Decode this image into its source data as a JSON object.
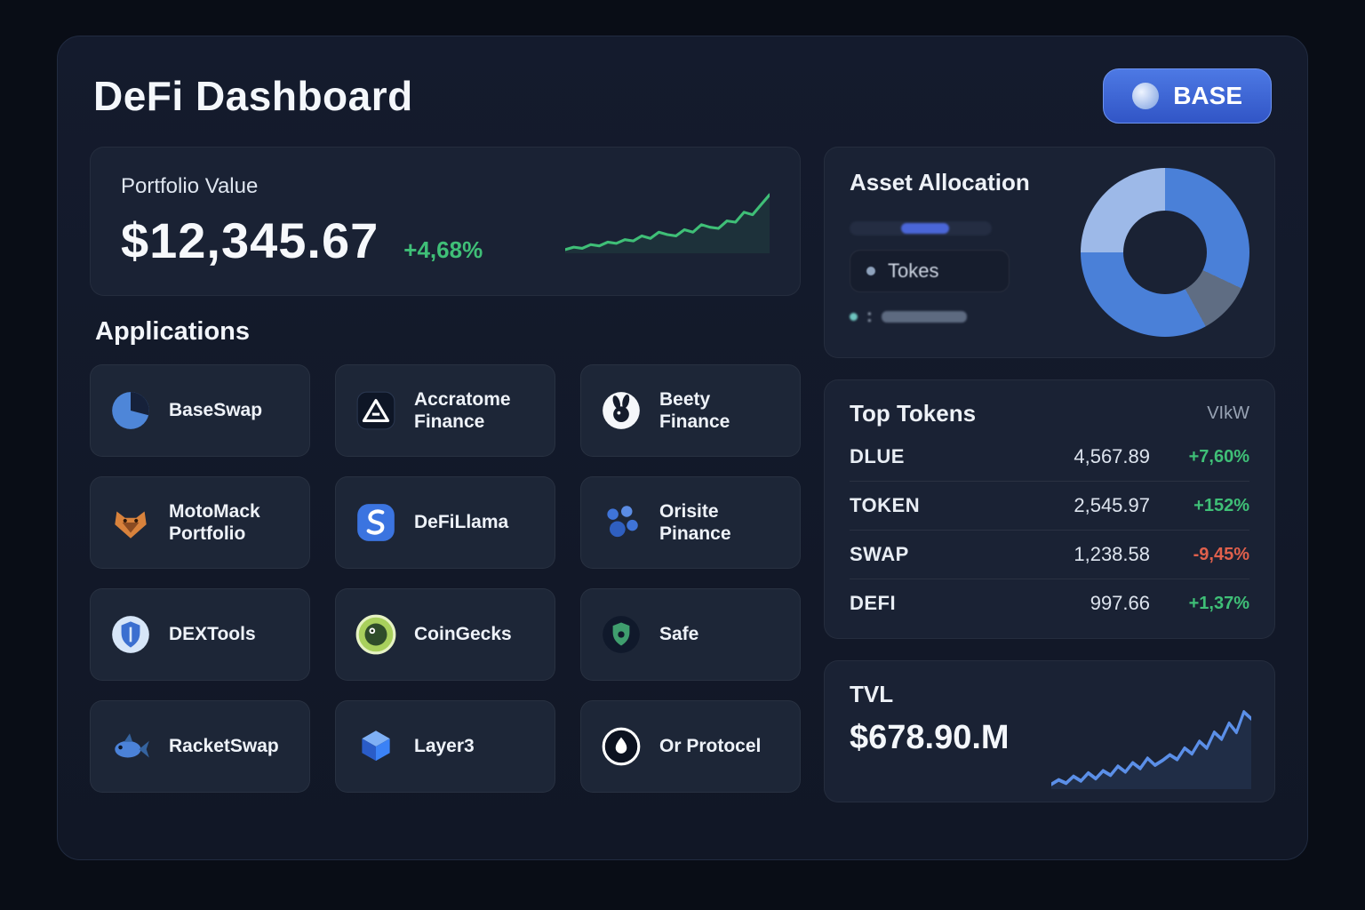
{
  "header": {
    "title": "DeFi Dashboard",
    "network": {
      "label": "BASE"
    }
  },
  "portfolio": {
    "label": "Portfolio Value",
    "value": "$12,345.67",
    "change": "+4,68%"
  },
  "applications": {
    "heading": "Applications",
    "items": [
      {
        "label": "BaseSwap",
        "icon": "pie-chart-icon"
      },
      {
        "label": "Accratome Finance",
        "icon": "triangle-logo-icon"
      },
      {
        "label": "Beety Finance",
        "icon": "rabbit-icon"
      },
      {
        "label": "MotoMack Portfolio",
        "icon": "fox-icon"
      },
      {
        "label": "DeFiLlama",
        "icon": "llama-icon"
      },
      {
        "label": "Orisite Pinance",
        "icon": "paw-icon"
      },
      {
        "label": "DEXTools",
        "icon": "shield-icon"
      },
      {
        "label": "CoinGecks",
        "icon": "gecko-icon"
      },
      {
        "label": "Safe",
        "icon": "safe-shield-icon"
      },
      {
        "label": "RacketSwap",
        "icon": "fish-icon"
      },
      {
        "label": "Layer3",
        "icon": "cube-icon"
      },
      {
        "label": "Or Protocel",
        "icon": "drop-ring-icon"
      }
    ]
  },
  "asset_allocation": {
    "title": "Asset Allocation",
    "legend": [
      {
        "label": "Tokes"
      },
      {
        "label": ":"
      }
    ]
  },
  "top_tokens": {
    "title": "Top Tokens",
    "action_label": "VIkW",
    "rows": [
      {
        "name": "DLUE",
        "value": "4,567.89",
        "change": "+7,60%",
        "dir": "up"
      },
      {
        "name": "TOKEN",
        "value": "2,545.97",
        "change": "+152%",
        "dir": "up"
      },
      {
        "name": "SWAP",
        "value": "1,238.58",
        "change": "-9,45%",
        "dir": "down"
      },
      {
        "name": "DEFI",
        "value": "997.66",
        "change": "+1,37%",
        "dir": "up"
      }
    ]
  },
  "tvl": {
    "label": "TVL",
    "value": "$678.90.M"
  },
  "colors": {
    "positive": "#3fbf77",
    "negative": "#e0604c",
    "accent_blue": "#4a80d8",
    "tvl_line": "#5b8fe8"
  },
  "chart_data": [
    {
      "type": "line",
      "name": "portfolio-sparkline",
      "values": [
        22,
        24,
        23,
        26,
        25,
        28,
        27,
        30,
        29,
        33,
        31,
        36,
        34,
        33,
        38,
        36,
        42,
        40,
        39,
        45,
        44,
        52,
        50,
        58,
        66
      ],
      "color": "#3fbf77"
    },
    {
      "type": "pie",
      "name": "asset-allocation-donut",
      "segments": [
        {
          "value": 32,
          "color": "#4a80d8"
        },
        {
          "value": 10,
          "color": "#5f6d83"
        },
        {
          "value": 33,
          "color": "#4a80d8"
        },
        {
          "value": 25,
          "color": "#9db9e8"
        }
      ]
    },
    {
      "type": "line",
      "name": "tvl-sparkline",
      "values": [
        12,
        16,
        13,
        19,
        15,
        22,
        17,
        24,
        20,
        28,
        23,
        31,
        26,
        35,
        29,
        33,
        38,
        34,
        44,
        39,
        50,
        44,
        58,
        52,
        66,
        58,
        76,
        70
      ],
      "color": "#5b8fe8"
    }
  ]
}
